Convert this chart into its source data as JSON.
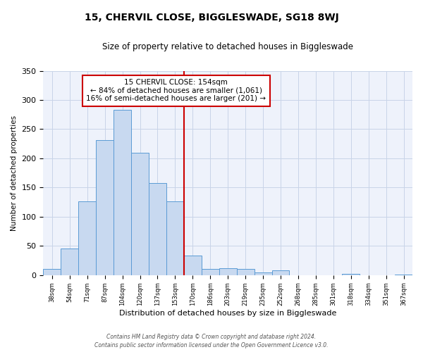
{
  "title": "15, CHERVIL CLOSE, BIGGLESWADE, SG18 8WJ",
  "subtitle": "Size of property relative to detached houses in Biggleswade",
  "xlabel": "Distribution of detached houses by size in Biggleswade",
  "ylabel": "Number of detached properties",
  "bin_labels": [
    "38sqm",
    "54sqm",
    "71sqm",
    "87sqm",
    "104sqm",
    "120sqm",
    "137sqm",
    "153sqm",
    "170sqm",
    "186sqm",
    "203sqm",
    "219sqm",
    "235sqm",
    "252sqm",
    "268sqm",
    "285sqm",
    "301sqm",
    "318sqm",
    "334sqm",
    "351sqm",
    "367sqm"
  ],
  "bin_values": [
    10,
    46,
    126,
    231,
    283,
    210,
    158,
    126,
    33,
    11,
    12,
    10,
    5,
    8,
    0,
    0,
    0,
    2,
    0,
    0,
    1
  ],
  "bar_color": "#c8d9f0",
  "bar_edge_color": "#5b9bd5",
  "marker_label_line1": "15 CHERVIL CLOSE: 154sqm",
  "marker_label_line2": "← 84% of detached houses are smaller (1,061)",
  "marker_label_line3": "16% of semi-detached houses are larger (201) →",
  "marker_color": "#cc0000",
  "annotation_box_color": "#cc0000",
  "grid_color": "#c8d4e8",
  "background_color": "#eef2fb",
  "ylim": [
    0,
    350
  ],
  "footer_line1": "Contains HM Land Registry data © Crown copyright and database right 2024.",
  "footer_line2": "Contains public sector information licensed under the Open Government Licence v3.0."
}
